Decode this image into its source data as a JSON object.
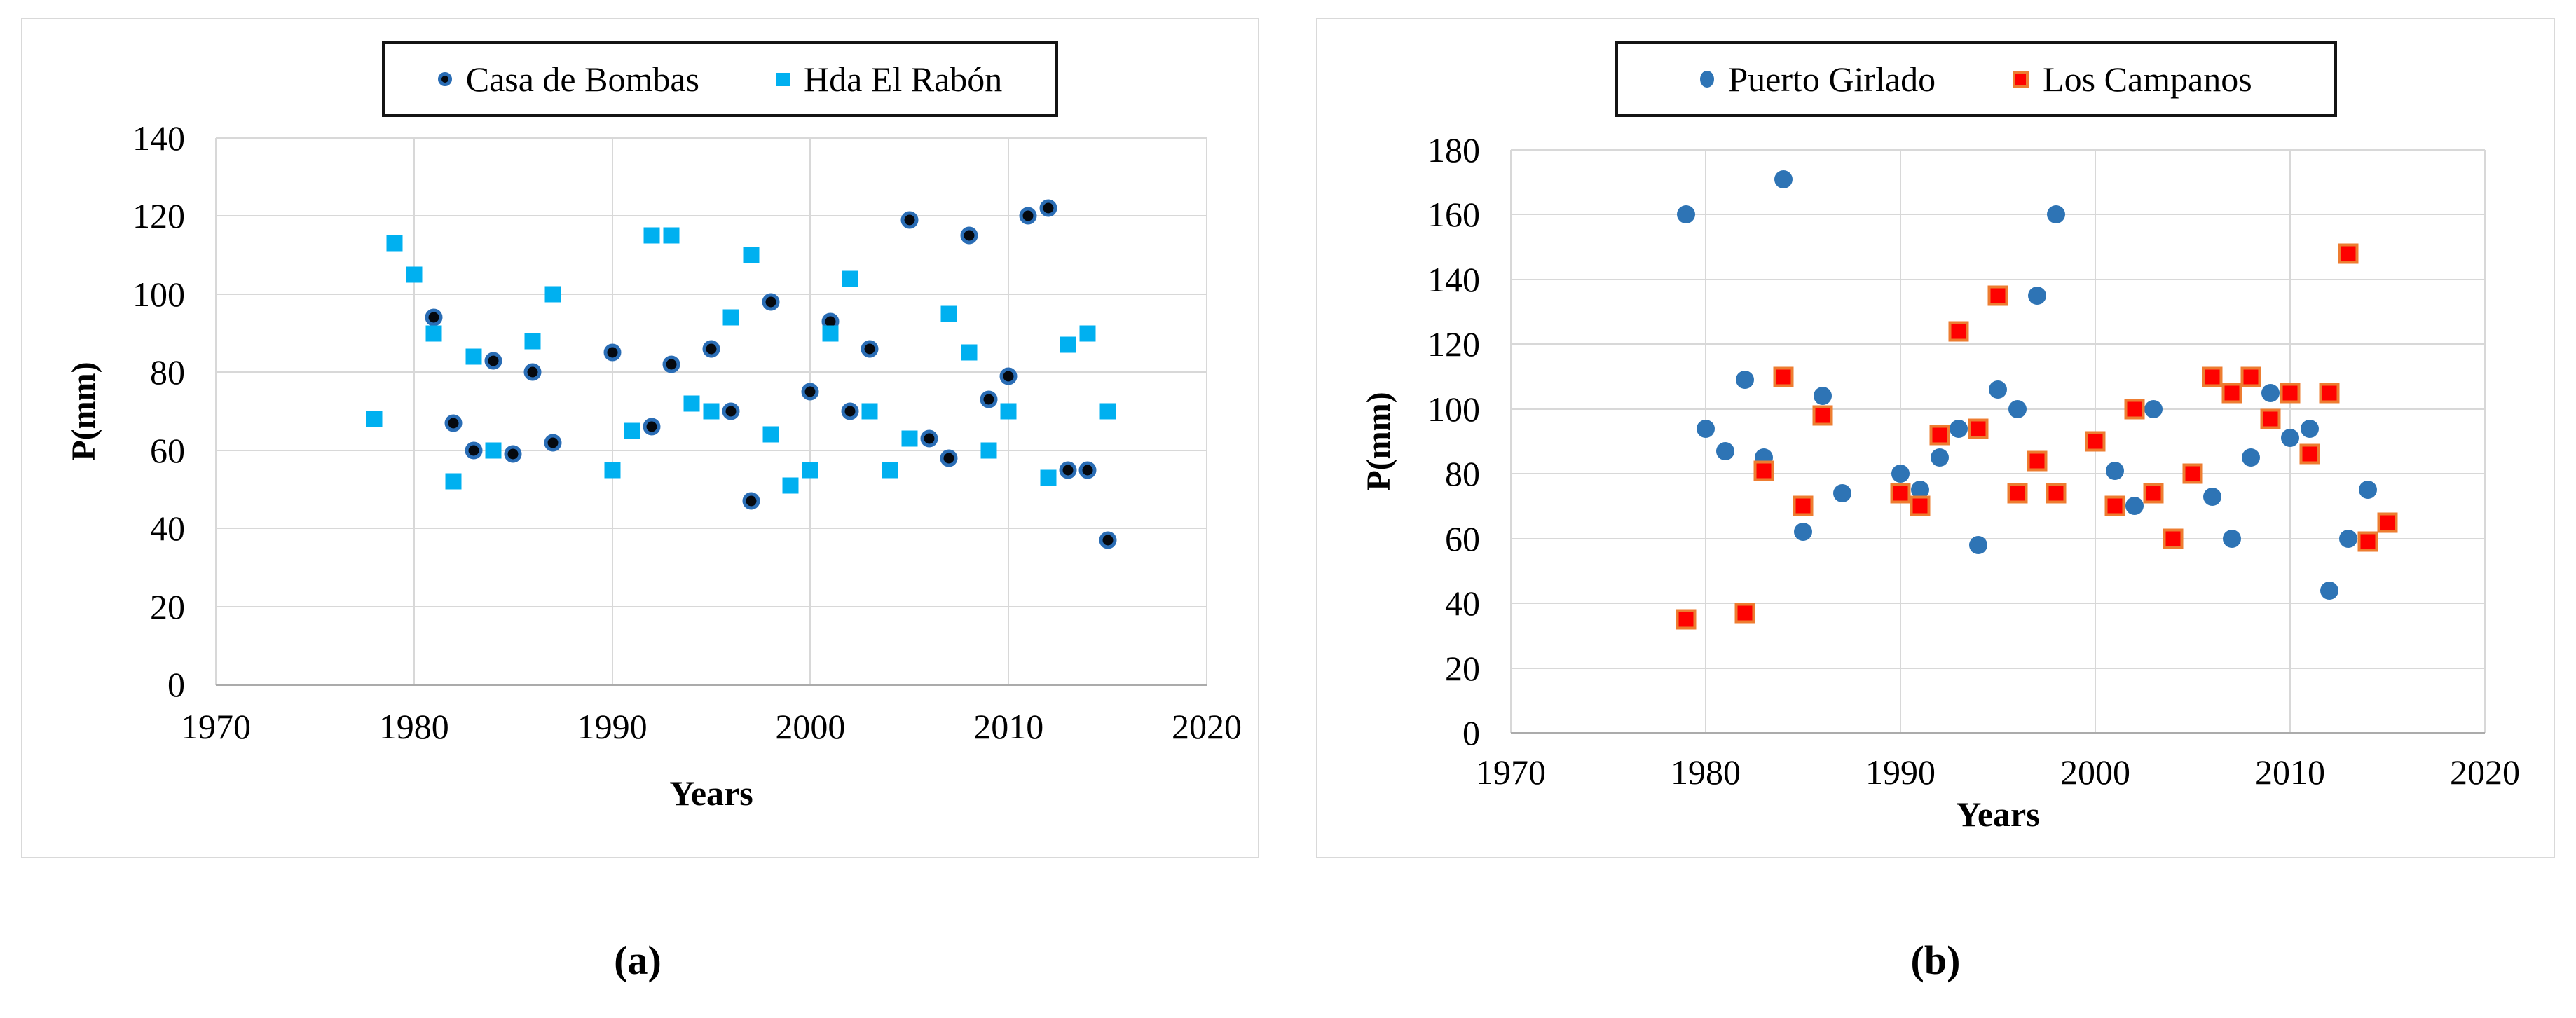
{
  "page": {
    "background": "#ffffff",
    "text_color": "#000000",
    "grid_color": "#d8d8d8",
    "axis_color": "#ababab",
    "panel_border_color": "#d9d9d9",
    "legend_border_color": "#141414"
  },
  "panel_labels": [
    "(a)",
    "(b)"
  ],
  "chart_data": [
    {
      "type": "scatter",
      "title": "",
      "xlabel": "Years",
      "ylabel": "P(mm)",
      "xlim": [
        1970,
        2020
      ],
      "ylim": [
        0,
        140
      ],
      "xticks": [
        1970,
        1980,
        1990,
        2000,
        2010,
        2020
      ],
      "yticks": [
        0,
        20,
        40,
        60,
        80,
        100,
        120,
        140
      ],
      "grid": true,
      "legend_position": "top-center",
      "series": [
        {
          "name": "Casa de Bombas",
          "marker": "circle",
          "fill": "#05090f",
          "outline": "#2a6db5",
          "points": [
            [
              1981,
              94
            ],
            [
              1982,
              67
            ],
            [
              1983,
              60
            ],
            [
              1984,
              83
            ],
            [
              1985,
              59
            ],
            [
              1986,
              80
            ],
            [
              1987,
              62
            ],
            [
              1990,
              85
            ],
            [
              1992,
              66
            ],
            [
              1993,
              82
            ],
            [
              1995,
              86
            ],
            [
              1996,
              70
            ],
            [
              1997,
              47
            ],
            [
              1998,
              98
            ],
            [
              2000,
              75
            ],
            [
              2001,
              93
            ],
            [
              2002,
              70
            ],
            [
              2003,
              86
            ],
            [
              2005,
              119
            ],
            [
              2006,
              63
            ],
            [
              2007,
              58
            ],
            [
              2008,
              115
            ],
            [
              2009,
              73
            ],
            [
              2010,
              79
            ],
            [
              2011,
              120
            ],
            [
              2012,
              122
            ],
            [
              2013,
              55
            ],
            [
              2014,
              55
            ],
            [
              2015,
              37
            ]
          ]
        },
        {
          "name": "Hda El Rabón",
          "marker": "square",
          "fill": "#00b0f0",
          "outline": null,
          "points": [
            [
              1978,
              68
            ],
            [
              1979,
              113
            ],
            [
              1980,
              105
            ],
            [
              1981,
              90
            ],
            [
              1982,
              52
            ],
            [
              1983,
              84
            ],
            [
              1984,
              60
            ],
            [
              1986,
              88
            ],
            [
              1987,
              100
            ],
            [
              1990,
              55
            ],
            [
              1991,
              65
            ],
            [
              1992,
              115
            ],
            [
              1993,
              115
            ],
            [
              1994,
              72
            ],
            [
              1995,
              70
            ],
            [
              1996,
              94
            ],
            [
              1997,
              110
            ],
            [
              1998,
              64
            ],
            [
              1999,
              51
            ],
            [
              2000,
              55
            ],
            [
              2001,
              90
            ],
            [
              2002,
              104
            ],
            [
              2003,
              70
            ],
            [
              2004,
              55
            ],
            [
              2005,
              63
            ],
            [
              2007,
              95
            ],
            [
              2008,
              85
            ],
            [
              2009,
              60
            ],
            [
              2010,
              70
            ],
            [
              2012,
              53
            ],
            [
              2013,
              87
            ],
            [
              2014,
              90
            ],
            [
              2015,
              70
            ]
          ]
        }
      ]
    },
    {
      "type": "scatter",
      "title": "",
      "xlabel": "Years",
      "ylabel": "P(mm)",
      "xlim": [
        1970,
        2020
      ],
      "ylim": [
        0,
        180
      ],
      "xticks": [
        1970,
        1980,
        1990,
        2000,
        2010,
        2020
      ],
      "yticks": [
        0,
        20,
        40,
        60,
        80,
        100,
        120,
        140,
        160,
        180
      ],
      "grid": true,
      "legend_position": "top-center",
      "series": [
        {
          "name": "Puerto Girlado",
          "marker": "circle",
          "fill": "#2e74b5",
          "outline": null,
          "points": [
            [
              1979,
              160
            ],
            [
              1980,
              94
            ],
            [
              1981,
              87
            ],
            [
              1982,
              109
            ],
            [
              1983,
              85
            ],
            [
              1984,
              171
            ],
            [
              1985,
              62
            ],
            [
              1986,
              104
            ],
            [
              1987,
              74
            ],
            [
              1990,
              80
            ],
            [
              1991,
              75
            ],
            [
              1992,
              85
            ],
            [
              1993,
              94
            ],
            [
              1994,
              58
            ],
            [
              1995,
              106
            ],
            [
              1996,
              100
            ],
            [
              1997,
              135
            ],
            [
              1998,
              160
            ],
            [
              2001,
              81
            ],
            [
              2002,
              70
            ],
            [
              2003,
              100
            ],
            [
              2006,
              73
            ],
            [
              2007,
              60
            ],
            [
              2008,
              85
            ],
            [
              2009,
              105
            ],
            [
              2010,
              91
            ],
            [
              2011,
              94
            ],
            [
              2012,
              44
            ],
            [
              2013,
              60
            ],
            [
              2014,
              75
            ]
          ]
        },
        {
          "name": "Los Campanos",
          "marker": "square",
          "fill": "#fe0100",
          "outline": "#ed7d31",
          "points": [
            [
              1979,
              35
            ],
            [
              1982,
              37
            ],
            [
              1983,
              81
            ],
            [
              1984,
              110
            ],
            [
              1985,
              70
            ],
            [
              1986,
              98
            ],
            [
              1990,
              74
            ],
            [
              1991,
              70
            ],
            [
              1992,
              92
            ],
            [
              1993,
              124
            ],
            [
              1994,
              94
            ],
            [
              1995,
              135
            ],
            [
              1996,
              74
            ],
            [
              1997,
              84
            ],
            [
              1998,
              74
            ],
            [
              2000,
              90
            ],
            [
              2001,
              70
            ],
            [
              2002,
              100
            ],
            [
              2003,
              74
            ],
            [
              2004,
              60
            ],
            [
              2005,
              80
            ],
            [
              2006,
              110
            ],
            [
              2007,
              105
            ],
            [
              2008,
              110
            ],
            [
              2009,
              97
            ],
            [
              2010,
              105
            ],
            [
              2011,
              86
            ],
            [
              2012,
              105
            ],
            [
              2013,
              148
            ],
            [
              2014,
              59
            ],
            [
              2015,
              65
            ]
          ]
        }
      ]
    }
  ]
}
